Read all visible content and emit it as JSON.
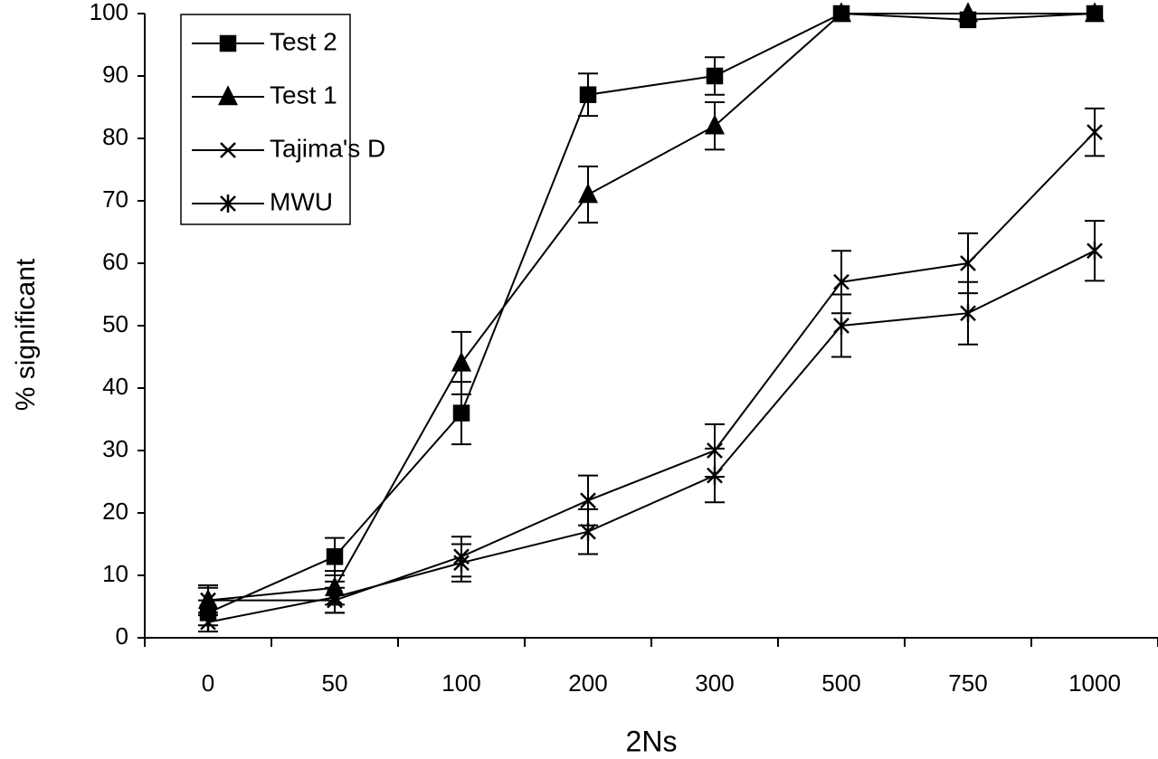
{
  "chart_data": {
    "type": "line",
    "xlabel": "2Ns",
    "ylabel": "% significant",
    "categories": [
      "0",
      "50",
      "100",
      "200",
      "300",
      "500",
      "750",
      "1000"
    ],
    "ylim": [
      0,
      100
    ],
    "yticks": [
      0,
      10,
      20,
      30,
      40,
      50,
      60,
      70,
      80,
      90,
      100
    ],
    "grid": false,
    "legend": "upper left",
    "series": [
      {
        "name": "Test 2",
        "color": "#000000",
        "marker": "square",
        "values": [
          4,
          13,
          36,
          87,
          90,
          100,
          99,
          100
        ],
        "errors": [
          2,
          3,
          5,
          3.4,
          3,
          0,
          0,
          0
        ]
      },
      {
        "name": "Test 1",
        "color": "#000000",
        "marker": "triangle",
        "values": [
          6,
          8,
          44,
          71,
          82,
          100,
          100,
          100
        ],
        "errors": [
          2.4,
          2.7,
          5,
          4.5,
          3.8,
          0,
          0,
          0
        ]
      },
      {
        "name": "Tajima's D",
        "color": "#000000",
        "marker": "x",
        "values": [
          6,
          6,
          13,
          22,
          30,
          57,
          60,
          81
        ],
        "errors": [
          2,
          2,
          3.2,
          4,
          4.2,
          5,
          4.8,
          3.8
        ]
      },
      {
        "name": "MWU",
        "color": "#000000",
        "marker": "asterisk",
        "values": [
          2.5,
          6.5,
          12,
          17,
          26,
          50,
          52,
          62
        ],
        "errors": [
          1.5,
          2.5,
          3,
          3.6,
          4.3,
          5,
          5,
          4.8
        ]
      }
    ]
  }
}
